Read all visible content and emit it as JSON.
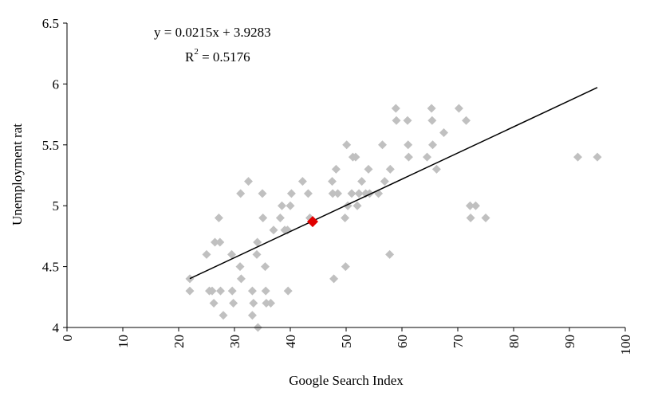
{
  "chart_data": {
    "type": "scatter",
    "xlabel": "Google Search Index",
    "ylabel": "Unemployment rat",
    "xlim": [
      0,
      100
    ],
    "ylim": [
      4,
      6.5
    ],
    "x_ticks": [
      "0",
      "10",
      "20",
      "30",
      "40",
      "50",
      "60",
      "70",
      "80",
      "90",
      "100"
    ],
    "y_ticks": [
      "4",
      "4.5",
      "5",
      "5.5",
      "6",
      "6.5"
    ],
    "grid": false,
    "legend": "none",
    "equation": "y = 0.0215x + 3.9283",
    "r2_base": "R",
    "r2_sup": "2",
    "r2_value": " = 0.5176",
    "trendline": {
      "slope": 0.0215,
      "intercept": 3.9283,
      "x_start": 22,
      "x_end": 95
    },
    "colors": {
      "points": "#c0c0c0",
      "highlight": "#e00000",
      "trendline": "#000000"
    },
    "points": [
      {
        "x": 22,
        "y": 4.3
      },
      {
        "x": 22,
        "y": 4.4
      },
      {
        "x": 25,
        "y": 4.6
      },
      {
        "x": 25.5,
        "y": 4.3
      },
      {
        "x": 26,
        "y": 4.3
      },
      {
        "x": 26.3,
        "y": 4.2
      },
      {
        "x": 26.5,
        "y": 4.7
      },
      {
        "x": 27.2,
        "y": 4.9
      },
      {
        "x": 27.4,
        "y": 4.7
      },
      {
        "x": 27.5,
        "y": 4.3
      },
      {
        "x": 28,
        "y": 4.1
      },
      {
        "x": 29.5,
        "y": 4.6
      },
      {
        "x": 29.6,
        "y": 4.3
      },
      {
        "x": 29.8,
        "y": 4.2
      },
      {
        "x": 31,
        "y": 4.5
      },
      {
        "x": 31.1,
        "y": 5.1
      },
      {
        "x": 31.2,
        "y": 4.4
      },
      {
        "x": 32.5,
        "y": 5.2
      },
      {
        "x": 33.2,
        "y": 4.3
      },
      {
        "x": 33.2,
        "y": 4.1
      },
      {
        "x": 33.4,
        "y": 4.2
      },
      {
        "x": 34,
        "y": 4.6
      },
      {
        "x": 34.1,
        "y": 4.7
      },
      {
        "x": 34.2,
        "y": 4.0
      },
      {
        "x": 35,
        "y": 5.1
      },
      {
        "x": 35.1,
        "y": 4.9
      },
      {
        "x": 35.5,
        "y": 4.5
      },
      {
        "x": 35.6,
        "y": 4.3
      },
      {
        "x": 35.7,
        "y": 4.2
      },
      {
        "x": 36.5,
        "y": 4.2
      },
      {
        "x": 37,
        "y": 4.8
      },
      {
        "x": 38.2,
        "y": 4.9
      },
      {
        "x": 38.5,
        "y": 5.0
      },
      {
        "x": 39,
        "y": 4.8
      },
      {
        "x": 39.5,
        "y": 4.8
      },
      {
        "x": 39.6,
        "y": 4.3
      },
      {
        "x": 40,
        "y": 5.0
      },
      {
        "x": 40.2,
        "y": 5.1
      },
      {
        "x": 42.2,
        "y": 5.2
      },
      {
        "x": 43.2,
        "y": 5.1
      },
      {
        "x": 43.5,
        "y": 4.9
      },
      {
        "x": 47.5,
        "y": 5.2
      },
      {
        "x": 47.6,
        "y": 5.1
      },
      {
        "x": 47.8,
        "y": 4.4
      },
      {
        "x": 48.2,
        "y": 5.3
      },
      {
        "x": 48.5,
        "y": 5.1
      },
      {
        "x": 49.8,
        "y": 4.9
      },
      {
        "x": 49.9,
        "y": 4.5
      },
      {
        "x": 50.1,
        "y": 5.5
      },
      {
        "x": 50.3,
        "y": 5.0
      },
      {
        "x": 51,
        "y": 5.1
      },
      {
        "x": 51.2,
        "y": 5.4
      },
      {
        "x": 51.7,
        "y": 5.4
      },
      {
        "x": 52,
        "y": 5.0
      },
      {
        "x": 52.3,
        "y": 5.1
      },
      {
        "x": 52.8,
        "y": 5.2
      },
      {
        "x": 53.5,
        "y": 5.1
      },
      {
        "x": 54,
        "y": 5.3
      },
      {
        "x": 54.2,
        "y": 5.1
      },
      {
        "x": 55.8,
        "y": 5.1
      },
      {
        "x": 56.5,
        "y": 5.5
      },
      {
        "x": 56.9,
        "y": 5.2
      },
      {
        "x": 57.8,
        "y": 4.6
      },
      {
        "x": 57.9,
        "y": 5.3
      },
      {
        "x": 58.9,
        "y": 5.8
      },
      {
        "x": 59,
        "y": 5.7
      },
      {
        "x": 61,
        "y": 5.7
      },
      {
        "x": 61.1,
        "y": 5.5
      },
      {
        "x": 61.2,
        "y": 5.4
      },
      {
        "x": 64.5,
        "y": 5.4
      },
      {
        "x": 65.3,
        "y": 5.8
      },
      {
        "x": 65.4,
        "y": 5.7
      },
      {
        "x": 65.5,
        "y": 5.5
      },
      {
        "x": 66.2,
        "y": 5.3
      },
      {
        "x": 67.5,
        "y": 5.6
      },
      {
        "x": 70.2,
        "y": 5.8
      },
      {
        "x": 71.5,
        "y": 5.7
      },
      {
        "x": 72.2,
        "y": 5.0
      },
      {
        "x": 72.3,
        "y": 4.9
      },
      {
        "x": 73.2,
        "y": 5.0
      },
      {
        "x": 75,
        "y": 4.9
      },
      {
        "x": 91.5,
        "y": 5.4
      },
      {
        "x": 95,
        "y": 5.4
      }
    ],
    "highlight_point": {
      "x": 44,
      "y": 4.87
    }
  }
}
